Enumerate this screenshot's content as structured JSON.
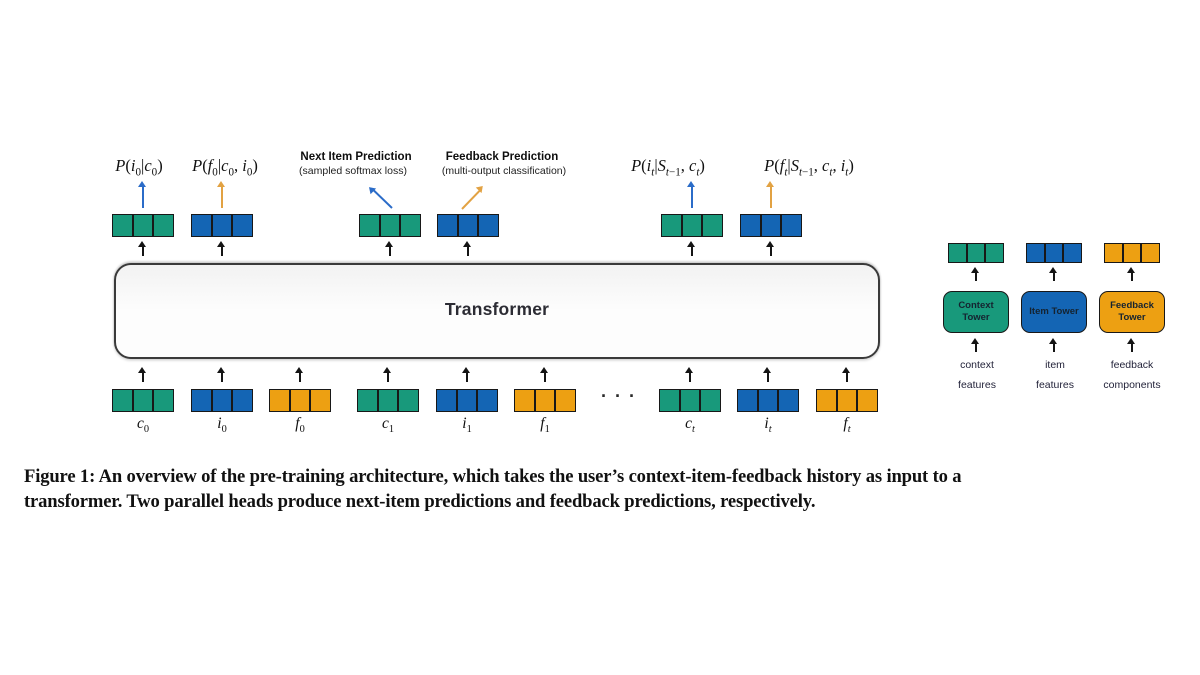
{
  "palette": {
    "green": "#18997B",
    "blue": "#1465B4",
    "orange": "#EDA012",
    "arrow_blue": "#2B6CC8",
    "arrow_orange": "#E2A243"
  },
  "diagram": {
    "transformer": {
      "label": "Transformer"
    },
    "outputs": [
      {
        "math": "P(i_0|c_0)",
        "block": "green",
        "arrow": "blue"
      },
      {
        "math": "P(f_0|c_0, i_0)",
        "block": "blue",
        "arrow": "orange"
      },
      {
        "heading": "Next Item Prediction",
        "subheading": "(sampled softmax loss)",
        "block": "green",
        "arrow": "blue"
      },
      {
        "heading": "Feedback Prediction",
        "subheading": "(multi-output classification)",
        "block": "blue",
        "arrow": "orange"
      },
      {
        "math": "P(i_t|S_{t−1}, c_t)",
        "block": "green",
        "arrow": "blue"
      },
      {
        "math": "P(f_t|S_{t−1}, c_t, i_t)",
        "block": "blue",
        "arrow": "orange"
      }
    ],
    "inputs": [
      {
        "label": "c_0",
        "color": "green"
      },
      {
        "label": "i_0",
        "color": "blue"
      },
      {
        "label": "f_0",
        "color": "orange"
      },
      {
        "label": "c_1",
        "color": "green"
      },
      {
        "label": "i_1",
        "color": "blue"
      },
      {
        "label": "f_1",
        "color": "orange"
      },
      {
        "label": "c_t",
        "color": "green"
      },
      {
        "label": "i_t",
        "color": "blue"
      },
      {
        "label": "f_t",
        "color": "orange"
      }
    ],
    "ellipsis": "···",
    "legend": {
      "towers": [
        {
          "name": "Context Tower",
          "color": "green",
          "caption_lines": [
            "context",
            "features"
          ]
        },
        {
          "name": "Item Tower",
          "color": "blue",
          "caption_lines": [
            "item",
            "features"
          ]
        },
        {
          "name": "Feedback Tower",
          "color": "orange",
          "caption_lines": [
            "feedback",
            "components"
          ]
        }
      ]
    }
  },
  "caption": {
    "lines": [
      "Figure 1: An overview of the pre-training architecture, which takes the user’s context-item-feedback history as input to a",
      "transformer. Two parallel heads produce next-item predictions and feedback predictions, respectively."
    ]
  }
}
